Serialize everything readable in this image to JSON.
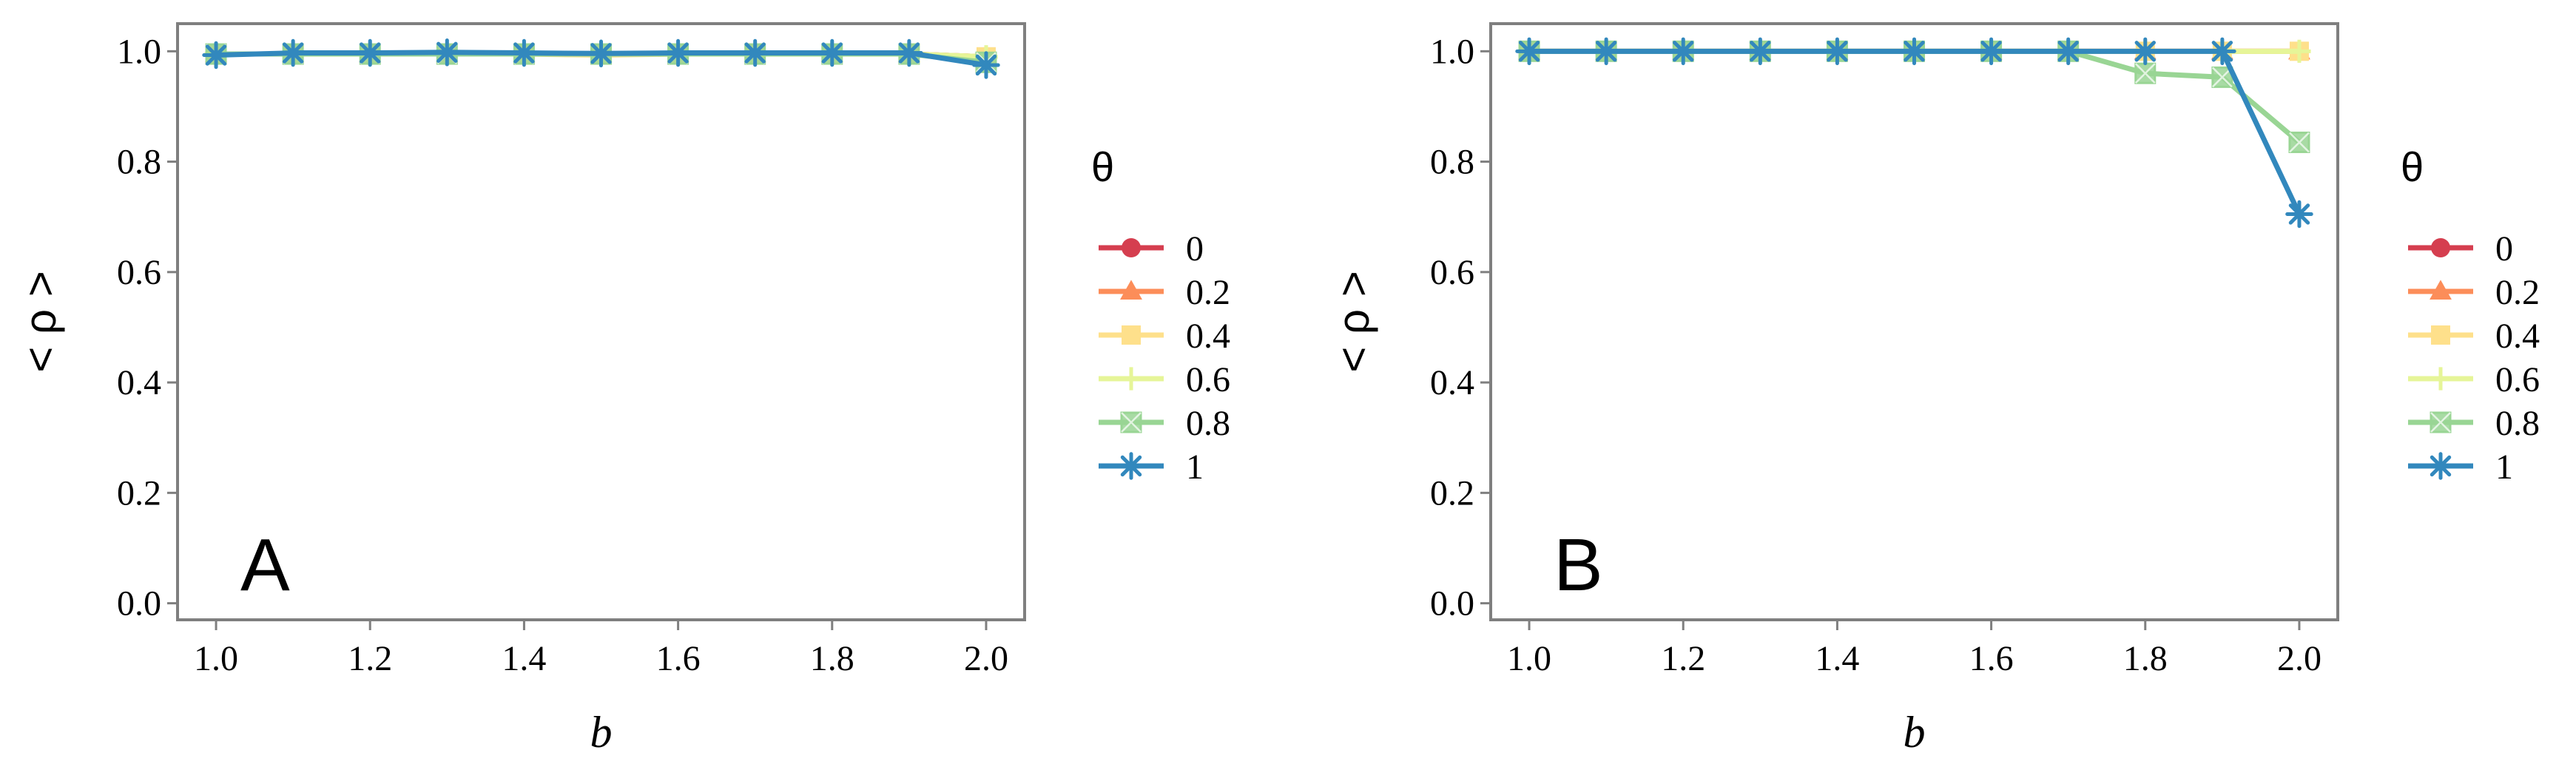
{
  "chart_data": [
    {
      "type": "line",
      "panel_label": "A",
      "xlabel": "b",
      "ylabel": "< ρ >",
      "xlim": [
        0.95,
        2.05
      ],
      "ylim": [
        -0.03,
        1.05
      ],
      "x_ticks": [
        "1.0",
        "1.2",
        "1.4",
        "1.6",
        "1.8",
        "2.0"
      ],
      "x_tick_values": [
        1.0,
        1.2,
        1.4,
        1.6,
        1.8,
        2.0
      ],
      "y_ticks": [
        "0.0",
        "0.2",
        "0.4",
        "0.6",
        "0.8",
        "1.0"
      ],
      "y_tick_values": [
        0.0,
        0.2,
        0.4,
        0.6,
        0.8,
        1.0
      ],
      "grid": false,
      "legend": {
        "title": "θ",
        "position": "right"
      },
      "x": [
        1.0,
        1.1,
        1.2,
        1.3,
        1.4,
        1.5,
        1.6,
        1.7,
        1.8,
        1.9,
        2.0
      ],
      "series": [
        {
          "name": "0",
          "color": "#d53e4f",
          "marker": "circle",
          "values": [
            0.995,
            0.995,
            0.995,
            0.995,
            0.995,
            0.995,
            0.995,
            0.995,
            0.995,
            0.995,
            0.99
          ]
        },
        {
          "name": "0.2",
          "color": "#fc8d59",
          "marker": "triangle",
          "values": [
            0.995,
            0.995,
            0.995,
            0.995,
            0.995,
            0.995,
            0.995,
            0.995,
            0.995,
            0.995,
            0.99
          ]
        },
        {
          "name": "0.4",
          "color": "#fee08b",
          "marker": "square",
          "values": [
            0.995,
            0.995,
            0.995,
            0.995,
            0.995,
            0.993,
            0.995,
            0.995,
            0.995,
            0.995,
            0.99
          ]
        },
        {
          "name": "0.6",
          "color": "#e6f598",
          "marker": "plus",
          "values": [
            0.995,
            0.995,
            0.995,
            0.995,
            0.995,
            0.995,
            0.995,
            0.995,
            0.995,
            0.995,
            0.99
          ]
        },
        {
          "name": "0.8",
          "color": "#99d594",
          "marker": "squarex",
          "values": [
            0.995,
            0.995,
            0.995,
            0.995,
            0.995,
            0.995,
            0.995,
            0.995,
            0.995,
            0.995,
            0.98
          ]
        },
        {
          "name": "1",
          "color": "#3288bd",
          "marker": "asterisk",
          "values": [
            0.993,
            0.997,
            0.997,
            0.998,
            0.997,
            0.996,
            0.997,
            0.997,
            0.997,
            0.997,
            0.975
          ]
        }
      ]
    },
    {
      "type": "line",
      "panel_label": "B",
      "xlabel": "b",
      "ylabel": "< ρ >",
      "xlim": [
        0.95,
        2.05
      ],
      "ylim": [
        -0.03,
        1.05
      ],
      "x_ticks": [
        "1.0",
        "1.2",
        "1.4",
        "1.6",
        "1.8",
        "2.0"
      ],
      "x_tick_values": [
        1.0,
        1.2,
        1.4,
        1.6,
        1.8,
        2.0
      ],
      "y_ticks": [
        "0.0",
        "0.2",
        "0.4",
        "0.6",
        "0.8",
        "1.0"
      ],
      "y_tick_values": [
        0.0,
        0.2,
        0.4,
        0.6,
        0.8,
        1.0
      ],
      "grid": false,
      "legend": {
        "title": "θ",
        "position": "right"
      },
      "x": [
        1.0,
        1.1,
        1.2,
        1.3,
        1.4,
        1.5,
        1.6,
        1.7,
        1.8,
        1.9,
        2.0
      ],
      "series": [
        {
          "name": "0",
          "color": "#d53e4f",
          "marker": "circle",
          "values": [
            1.0,
            1.0,
            1.0,
            1.0,
            1.0,
            1.0,
            1.0,
            1.0,
            1.0,
            1.0,
            1.0
          ]
        },
        {
          "name": "0.2",
          "color": "#fc8d59",
          "marker": "triangle",
          "values": [
            1.0,
            1.0,
            1.0,
            1.0,
            1.0,
            1.0,
            1.0,
            1.0,
            1.0,
            1.0,
            1.0
          ]
        },
        {
          "name": "0.4",
          "color": "#fee08b",
          "marker": "square",
          "values": [
            1.0,
            1.0,
            1.0,
            1.0,
            1.0,
            1.0,
            1.0,
            1.0,
            1.0,
            1.0,
            1.0
          ]
        },
        {
          "name": "0.6",
          "color": "#e6f598",
          "marker": "plus",
          "values": [
            1.0,
            1.0,
            1.0,
            1.0,
            1.0,
            1.0,
            1.0,
            1.0,
            1.0,
            1.0,
            1.0
          ]
        },
        {
          "name": "0.8",
          "color": "#99d594",
          "marker": "squarex",
          "values": [
            1.0,
            1.0,
            1.0,
            1.0,
            1.0,
            1.0,
            1.0,
            1.0,
            0.96,
            0.953,
            0.835
          ]
        },
        {
          "name": "1",
          "color": "#3288bd",
          "marker": "asterisk",
          "values": [
            1.0,
            1.0,
            1.0,
            1.0,
            1.0,
            1.0,
            1.0,
            1.0,
            1.0,
            1.0,
            0.705
          ]
        }
      ]
    }
  ]
}
